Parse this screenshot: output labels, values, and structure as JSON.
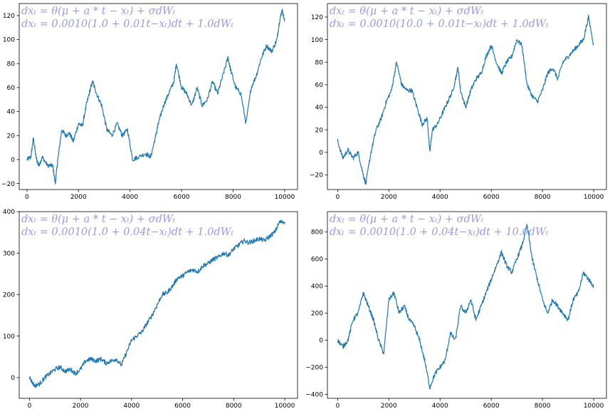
{
  "chart_data": [
    {
      "type": "line",
      "equation_line1": "dxₜ = θ(μ + a * t − xₜ) + σdWₜ",
      "equation_line2": "dxₜ = 0.0010(1.0 + 0.01t−xₜ)dt + 1.0dWₜ",
      "xlim": [
        -300,
        10500
      ],
      "ylim": [
        -25,
        130
      ],
      "xticks": [
        0,
        2000,
        4000,
        6000,
        8000,
        10000
      ],
      "yticks": [
        -20,
        0,
        20,
        40,
        60,
        80,
        100,
        120
      ],
      "line_color": "#1f77b4",
      "series": [
        {
          "x": [
            0,
            150,
            250,
            350,
            450,
            600,
            800,
            1000,
            1100,
            1200,
            1350,
            1500,
            1650,
            1800,
            2000,
            2150,
            2300,
            2450,
            2550,
            2700,
            2900,
            3100,
            3300,
            3500,
            3700,
            3900,
            4100,
            4300,
            4600,
            4800,
            5000,
            5100,
            5300,
            5500,
            5700,
            5800,
            6000,
            6200,
            6400,
            6600,
            6800,
            7000,
            7200,
            7400,
            7600,
            7800,
            7900,
            8100,
            8300,
            8500,
            8700,
            8900,
            9100,
            9300,
            9500,
            9700,
            9800,
            9900,
            10000
          ],
          "y": [
            0,
            2,
            18,
            2,
            -5,
            2,
            -5,
            -5,
            -20,
            0,
            25,
            20,
            22,
            15,
            30,
            28,
            45,
            58,
            65,
            55,
            45,
            25,
            20,
            30,
            20,
            25,
            0,
            2,
            5,
            2,
            20,
            30,
            45,
            55,
            65,
            80,
            60,
            55,
            45,
            60,
            45,
            50,
            65,
            55,
            70,
            85,
            75,
            60,
            55,
            30,
            60,
            70,
            85,
            95,
            90,
            100,
            115,
            125,
            115
          ]
        }
      ]
    },
    {
      "type": "line",
      "equation_line1": "dxₜ = θ(μ + a * t − xₜ) + σdWₜ",
      "equation_line2": "dxₜ = 0.0010(10.0 + 0.01t−xₜ)dt + 1.0dWₜ",
      "xlim": [
        -400,
        10500
      ],
      "ylim": [
        -33,
        132
      ],
      "xticks": [
        0,
        2000,
        4000,
        6000,
        8000,
        10000
      ],
      "yticks": [
        -20,
        0,
        20,
        40,
        60,
        80,
        100,
        120
      ],
      "line_color": "#1f77b4",
      "series": [
        {
          "x": [
            0,
            200,
            400,
            600,
            800,
            1000,
            1100,
            1300,
            1500,
            1700,
            1900,
            2100,
            2300,
            2500,
            2700,
            2900,
            3100,
            3300,
            3500,
            3600,
            3700,
            3900,
            4100,
            4300,
            4500,
            4700,
            4800,
            5000,
            5200,
            5400,
            5600,
            5800,
            6000,
            6200,
            6400,
            6600,
            6800,
            7000,
            7200,
            7400,
            7600,
            7800,
            8000,
            8200,
            8400,
            8600,
            8800,
            9000,
            9200,
            9400,
            9600,
            9800,
            10000
          ],
          "y": [
            10,
            -5,
            2,
            -5,
            0,
            -20,
            -28,
            0,
            20,
            30,
            45,
            55,
            80,
            60,
            55,
            55,
            40,
            25,
            30,
            0,
            20,
            25,
            35,
            45,
            55,
            75,
            55,
            40,
            55,
            65,
            70,
            85,
            95,
            80,
            70,
            80,
            85,
            100,
            95,
            60,
            50,
            45,
            55,
            70,
            75,
            65,
            80,
            85,
            90,
            95,
            100,
            120,
            95
          ]
        }
      ]
    },
    {
      "type": "line",
      "equation_line1": "dxₜ = θ(μ + a * t − xₜ) + σdWₜ",
      "equation_line2": "dxₜ = 0.0010(1.0 + 0.04t−xₜ)dt + 1.0dWₜ",
      "xlim": [
        -400,
        10500
      ],
      "ylim": [
        -50,
        400
      ],
      "xticks": [
        0,
        2000,
        4000,
        6000,
        8000,
        10000
      ],
      "yticks": [
        0,
        100,
        200,
        300,
        400
      ],
      "line_color": "#1f77b4",
      "series": [
        {
          "x": [
            0,
            200,
            400,
            600,
            800,
            1000,
            1200,
            1400,
            1600,
            1800,
            2000,
            2200,
            2400,
            2600,
            2800,
            3000,
            3200,
            3400,
            3600,
            3800,
            4000,
            4200,
            4400,
            4600,
            4800,
            5000,
            5200,
            5400,
            5600,
            5800,
            6000,
            6200,
            6400,
            6600,
            6800,
            7000,
            7200,
            7400,
            7600,
            7800,
            8000,
            8200,
            8400,
            8600,
            8800,
            9000,
            9200,
            9400,
            9600,
            9800,
            10000
          ],
          "y": [
            0,
            -20,
            -15,
            0,
            10,
            20,
            25,
            15,
            20,
            10,
            20,
            40,
            45,
            40,
            45,
            35,
            40,
            45,
            30,
            60,
            90,
            100,
            110,
            130,
            150,
            175,
            200,
            205,
            220,
            240,
            245,
            255,
            260,
            255,
            270,
            275,
            285,
            290,
            300,
            295,
            310,
            320,
            330,
            325,
            330,
            335,
            330,
            340,
            350,
            375,
            375
          ]
        }
      ]
    },
    {
      "type": "line",
      "equation_line1": "dxₜ = θ(μ + a * t − xₜ) + σdWₜ",
      "equation_line2": "dxₜ = 0.0010(1.0 + 0.04t−xₜ)dt + 10.0dWₜ",
      "xlim": [
        -400,
        10500
      ],
      "ylim": [
        -430,
        950
      ],
      "xticks": [
        0,
        2000,
        4000,
        6000,
        8000,
        10000
      ],
      "yticks": [
        -400,
        -200,
        0,
        200,
        400,
        600,
        800
      ],
      "line_color": "#1f77b4",
      "series": [
        {
          "x": [
            0,
            200,
            400,
            600,
            800,
            1000,
            1200,
            1400,
            1600,
            1800,
            2000,
            2200,
            2400,
            2600,
            2800,
            3000,
            3200,
            3400,
            3600,
            3800,
            4000,
            4200,
            4400,
            4600,
            4800,
            5000,
            5200,
            5400,
            5600,
            5800,
            6000,
            6200,
            6400,
            6600,
            6800,
            7000,
            7200,
            7400,
            7600,
            7800,
            8000,
            8200,
            8400,
            8600,
            8800,
            9000,
            9200,
            9400,
            9600,
            9800,
            10000
          ],
          "y": [
            0,
            -50,
            0,
            150,
            200,
            350,
            250,
            150,
            0,
            -100,
            300,
            350,
            200,
            250,
            150,
            100,
            0,
            -150,
            -350,
            -250,
            -200,
            -150,
            50,
            0,
            250,
            200,
            300,
            150,
            250,
            350,
            450,
            550,
            650,
            550,
            500,
            600,
            700,
            850,
            600,
            450,
            300,
            200,
            300,
            250,
            200,
            150,
            300,
            350,
            500,
            450,
            400
          ]
        }
      ]
    }
  ]
}
